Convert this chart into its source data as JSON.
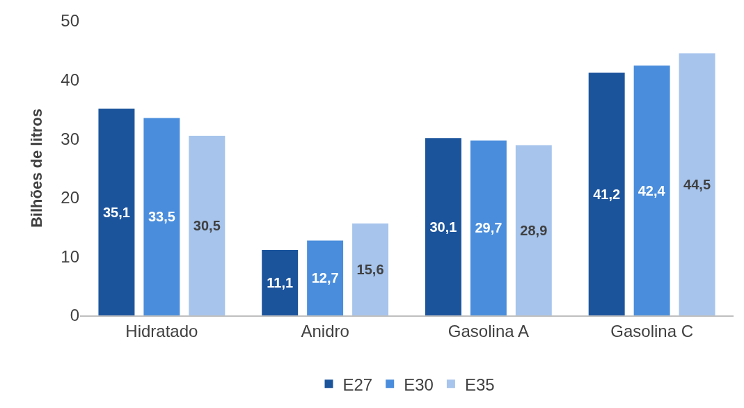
{
  "chart_data": {
    "type": "bar",
    "ylabel": "Bilhões de litros",
    "categories": [
      "Hidratado",
      "Anidro",
      "Gasolina A",
      "Gasolina C"
    ],
    "series": [
      {
        "name": "E27",
        "color": "#1c549c",
        "values": [
          35.1,
          11.1,
          30.1,
          41.2
        ],
        "value_labels": [
          "35,1",
          "11,1",
          "30,1",
          "41,2"
        ]
      },
      {
        "name": "E30",
        "color": "#4a8ddc",
        "values": [
          33.5,
          12.7,
          29.7,
          42.4
        ],
        "value_labels": [
          "33,5",
          "12,7",
          "29,7",
          "42,4"
        ]
      },
      {
        "name": "E35",
        "color": "#a6c4ec",
        "values": [
          30.5,
          15.6,
          28.9,
          44.5
        ],
        "value_labels": [
          "30,5",
          "15,6",
          "28,9",
          "44,5"
        ]
      }
    ],
    "ylim": [
      0,
      50
    ],
    "yticks": [
      0,
      10,
      20,
      30,
      40,
      50
    ],
    "grid": false,
    "legend": "bottom"
  }
}
